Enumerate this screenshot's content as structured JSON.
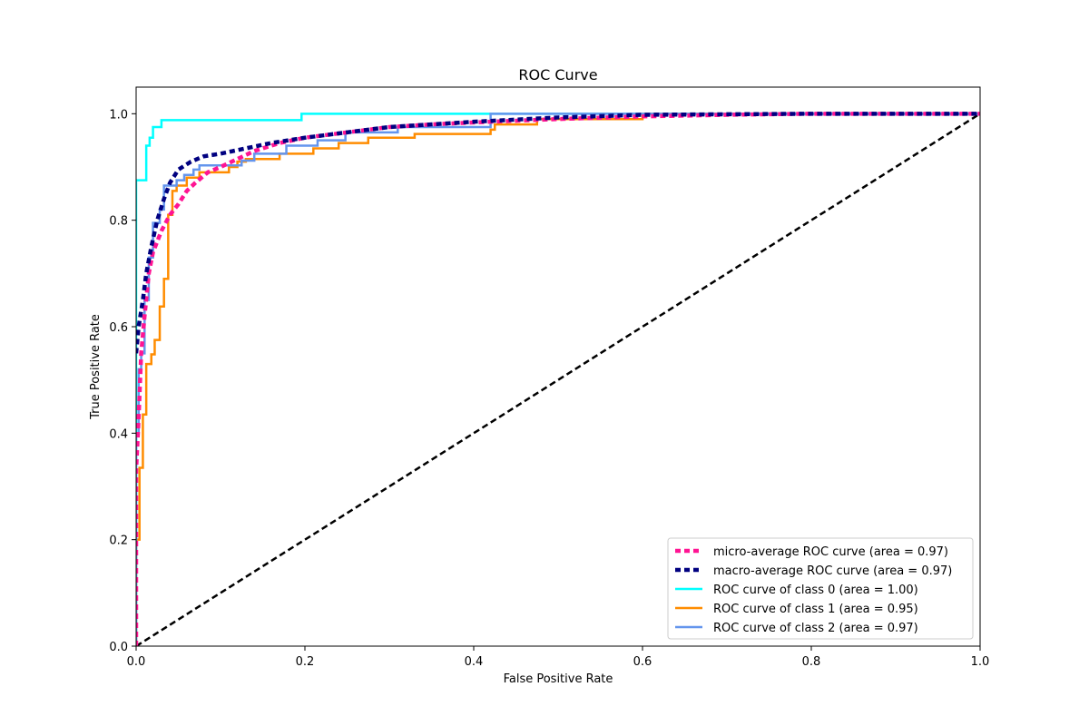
{
  "chart_data": {
    "type": "line",
    "title": "ROC Curve",
    "xlabel": "False Positive Rate",
    "ylabel": "True Positive Rate",
    "xlim": [
      0.0,
      1.0
    ],
    "ylim": [
      0.0,
      1.05
    ],
    "xticks": [
      0.0,
      0.2,
      0.4,
      0.6,
      0.8,
      1.0
    ],
    "xtick_labels": [
      "0.0",
      "0.2",
      "0.4",
      "0.6",
      "0.8",
      "1.0"
    ],
    "yticks": [
      0.0,
      0.2,
      0.4,
      0.6,
      0.8,
      1.0
    ],
    "ytick_labels": [
      "0.0",
      "0.2",
      "0.4",
      "0.6",
      "0.8",
      "1.0"
    ],
    "grid": false,
    "legend_position": "lower right",
    "series": [
      {
        "name": "micro-average ROC curve (area = 0.97)",
        "color": "#ff1493",
        "style": "dotted",
        "points": [
          [
            0,
            0
          ],
          [
            0,
            0.33
          ],
          [
            0.003,
            0.43
          ],
          [
            0.006,
            0.55
          ],
          [
            0.01,
            0.62
          ],
          [
            0.015,
            0.7
          ],
          [
            0.02,
            0.74
          ],
          [
            0.03,
            0.78
          ],
          [
            0.04,
            0.81
          ],
          [
            0.05,
            0.83
          ],
          [
            0.06,
            0.855
          ],
          [
            0.07,
            0.87
          ],
          [
            0.085,
            0.89
          ],
          [
            0.1,
            0.9
          ],
          [
            0.12,
            0.915
          ],
          [
            0.14,
            0.93
          ],
          [
            0.17,
            0.945
          ],
          [
            0.2,
            0.955
          ],
          [
            0.25,
            0.965
          ],
          [
            0.3,
            0.975
          ],
          [
            0.35,
            0.98
          ],
          [
            0.42,
            0.985
          ],
          [
            0.5,
            0.99
          ],
          [
            0.6,
            0.995
          ],
          [
            0.7,
            0.998
          ],
          [
            0.8,
            1.0
          ],
          [
            1.0,
            1.0
          ]
        ]
      },
      {
        "name": "macro-average ROC curve (area = 0.97)",
        "color": "#000080",
        "style": "dotted",
        "points": [
          [
            0,
            0.55
          ],
          [
            0.003,
            0.6
          ],
          [
            0.008,
            0.65
          ],
          [
            0.012,
            0.7
          ],
          [
            0.018,
            0.75
          ],
          [
            0.025,
            0.8
          ],
          [
            0.033,
            0.84
          ],
          [
            0.04,
            0.87
          ],
          [
            0.05,
            0.895
          ],
          [
            0.065,
            0.91
          ],
          [
            0.08,
            0.92
          ],
          [
            0.1,
            0.925
          ],
          [
            0.13,
            0.935
          ],
          [
            0.16,
            0.945
          ],
          [
            0.2,
            0.955
          ],
          [
            0.25,
            0.965
          ],
          [
            0.3,
            0.975
          ],
          [
            0.4,
            0.985
          ],
          [
            0.5,
            0.993
          ],
          [
            0.6,
            0.998
          ],
          [
            0.8,
            1.0
          ],
          [
            1.0,
            1.0
          ]
        ]
      },
      {
        "name": "ROC curve of class 0 (area = 1.00)",
        "color": "#00ffff",
        "style": "solid",
        "points": [
          [
            0,
            0
          ],
          [
            0,
            0.875
          ],
          [
            0.012,
            0.875
          ],
          [
            0.012,
            0.94
          ],
          [
            0.016,
            0.94
          ],
          [
            0.016,
            0.955
          ],
          [
            0.02,
            0.955
          ],
          [
            0.02,
            0.975
          ],
          [
            0.03,
            0.975
          ],
          [
            0.03,
            0.988
          ],
          [
            0.196,
            0.988
          ],
          [
            0.196,
            1.0
          ],
          [
            1.0,
            1.0
          ]
        ]
      },
      {
        "name": "ROC curve of class 1 (area = 0.95)",
        "color": "#ff8c00",
        "style": "solid",
        "points": [
          [
            0,
            0
          ],
          [
            0,
            0.2
          ],
          [
            0.004,
            0.2
          ],
          [
            0.004,
            0.335
          ],
          [
            0.008,
            0.335
          ],
          [
            0.008,
            0.435
          ],
          [
            0.012,
            0.435
          ],
          [
            0.012,
            0.53
          ],
          [
            0.018,
            0.53
          ],
          [
            0.018,
            0.548
          ],
          [
            0.022,
            0.548
          ],
          [
            0.022,
            0.575
          ],
          [
            0.028,
            0.575
          ],
          [
            0.028,
            0.638
          ],
          [
            0.033,
            0.638
          ],
          [
            0.033,
            0.69
          ],
          [
            0.038,
            0.69
          ],
          [
            0.038,
            0.81
          ],
          [
            0.043,
            0.81
          ],
          [
            0.043,
            0.855
          ],
          [
            0.048,
            0.855
          ],
          [
            0.048,
            0.865
          ],
          [
            0.06,
            0.865
          ],
          [
            0.06,
            0.88
          ],
          [
            0.075,
            0.88
          ],
          [
            0.075,
            0.89
          ],
          [
            0.11,
            0.89
          ],
          [
            0.11,
            0.9
          ],
          [
            0.12,
            0.9
          ],
          [
            0.12,
            0.91
          ],
          [
            0.13,
            0.91
          ],
          [
            0.13,
            0.915
          ],
          [
            0.17,
            0.915
          ],
          [
            0.17,
            0.925
          ],
          [
            0.21,
            0.925
          ],
          [
            0.21,
            0.935
          ],
          [
            0.24,
            0.935
          ],
          [
            0.24,
            0.945
          ],
          [
            0.275,
            0.945
          ],
          [
            0.275,
            0.955
          ],
          [
            0.33,
            0.955
          ],
          [
            0.33,
            0.962
          ],
          [
            0.42,
            0.962
          ],
          [
            0.42,
            0.97
          ],
          [
            0.425,
            0.97
          ],
          [
            0.425,
            0.98
          ],
          [
            0.475,
            0.98
          ],
          [
            0.475,
            0.99
          ],
          [
            0.6,
            0.99
          ],
          [
            0.6,
            1.0
          ],
          [
            1.0,
            1.0
          ]
        ]
      },
      {
        "name": "ROC curve of class 2 (area = 0.97)",
        "color": "#6495ed",
        "style": "solid",
        "points": [
          [
            0,
            0
          ],
          [
            0,
            0.4
          ],
          [
            0.003,
            0.4
          ],
          [
            0.003,
            0.52
          ],
          [
            0.006,
            0.52
          ],
          [
            0.006,
            0.55
          ],
          [
            0.01,
            0.55
          ],
          [
            0.01,
            0.65
          ],
          [
            0.015,
            0.65
          ],
          [
            0.015,
            0.73
          ],
          [
            0.02,
            0.73
          ],
          [
            0.02,
            0.795
          ],
          [
            0.028,
            0.795
          ],
          [
            0.028,
            0.82
          ],
          [
            0.033,
            0.82
          ],
          [
            0.033,
            0.865
          ],
          [
            0.048,
            0.865
          ],
          [
            0.048,
            0.875
          ],
          [
            0.057,
            0.875
          ],
          [
            0.057,
            0.885
          ],
          [
            0.068,
            0.885
          ],
          [
            0.068,
            0.895
          ],
          [
            0.075,
            0.895
          ],
          [
            0.075,
            0.903
          ],
          [
            0.125,
            0.903
          ],
          [
            0.125,
            0.912
          ],
          [
            0.14,
            0.912
          ],
          [
            0.14,
            0.925
          ],
          [
            0.178,
            0.925
          ],
          [
            0.178,
            0.94
          ],
          [
            0.215,
            0.94
          ],
          [
            0.215,
            0.95
          ],
          [
            0.248,
            0.95
          ],
          [
            0.248,
            0.965
          ],
          [
            0.31,
            0.965
          ],
          [
            0.31,
            0.975
          ],
          [
            0.42,
            0.975
          ],
          [
            0.42,
            0.99
          ],
          [
            0.42,
            1.0
          ],
          [
            1.0,
            1.0
          ]
        ]
      }
    ],
    "reference_line": {
      "color": "#000000",
      "style": "dashed",
      "points": [
        [
          0,
          0
        ],
        [
          1,
          1
        ]
      ]
    }
  }
}
